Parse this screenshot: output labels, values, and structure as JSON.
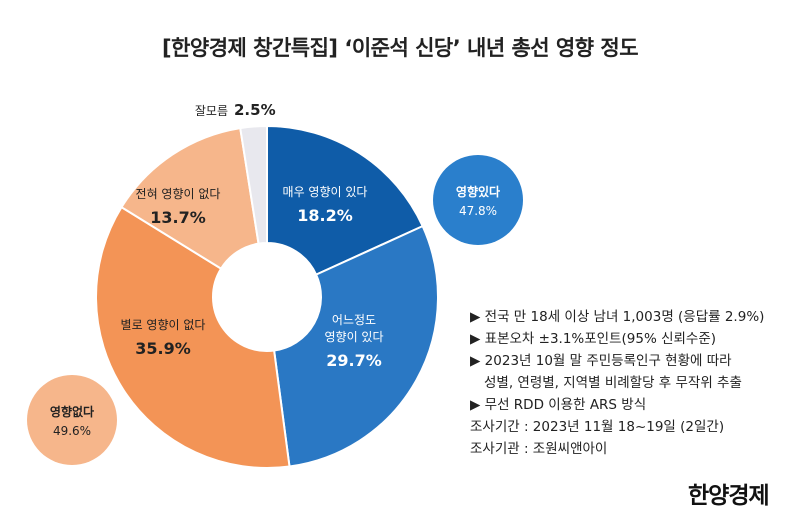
{
  "title": "[한양경제 창간특집] ‘이준석 신당’ 내년 총선 영향 정도",
  "chart_data": {
    "type": "pie",
    "unit": "%",
    "slices": [
      {
        "label": "매우 영향이 있다",
        "value": 18.2,
        "color": "#0f5ca8"
      },
      {
        "label": "어느정도 영향이 있다",
        "value": 29.7,
        "color": "#2a78c4"
      },
      {
        "label": "별로 영향이 없다",
        "value": 35.9,
        "color": "#f39456"
      },
      {
        "label": "전혀 영향이 없다",
        "value": 13.7,
        "color": "#f6b68b"
      },
      {
        "label": "잘모름",
        "value": 2.5,
        "color": "#e8e8ee"
      }
    ],
    "groups": [
      {
        "label": "영향있다",
        "value": "47.8%",
        "color": "#2a7fcc"
      },
      {
        "label": "영향없다",
        "value": "49.6%",
        "color": "#f6b68b"
      }
    ]
  },
  "notes": [
    "▶ 전국 만 18세 이상 남녀 1,003명 (응답률 2.9%)",
    "▶ 표본오차 ±3.1%포인트(95% 신뢰수준)",
    "▶ 2023년 10월 말 주민등록인구 현황에 따라",
    "성별, 연령별, 지역별 비례할당 후 무작위 추출",
    "▶ 무선 RDD 이용한 ARS 방식",
    "조사기간 : 2023년 11월 18~19일 (2일간)",
    "조사기관 : 조원씨앤아이"
  ],
  "logo": "한양경제"
}
